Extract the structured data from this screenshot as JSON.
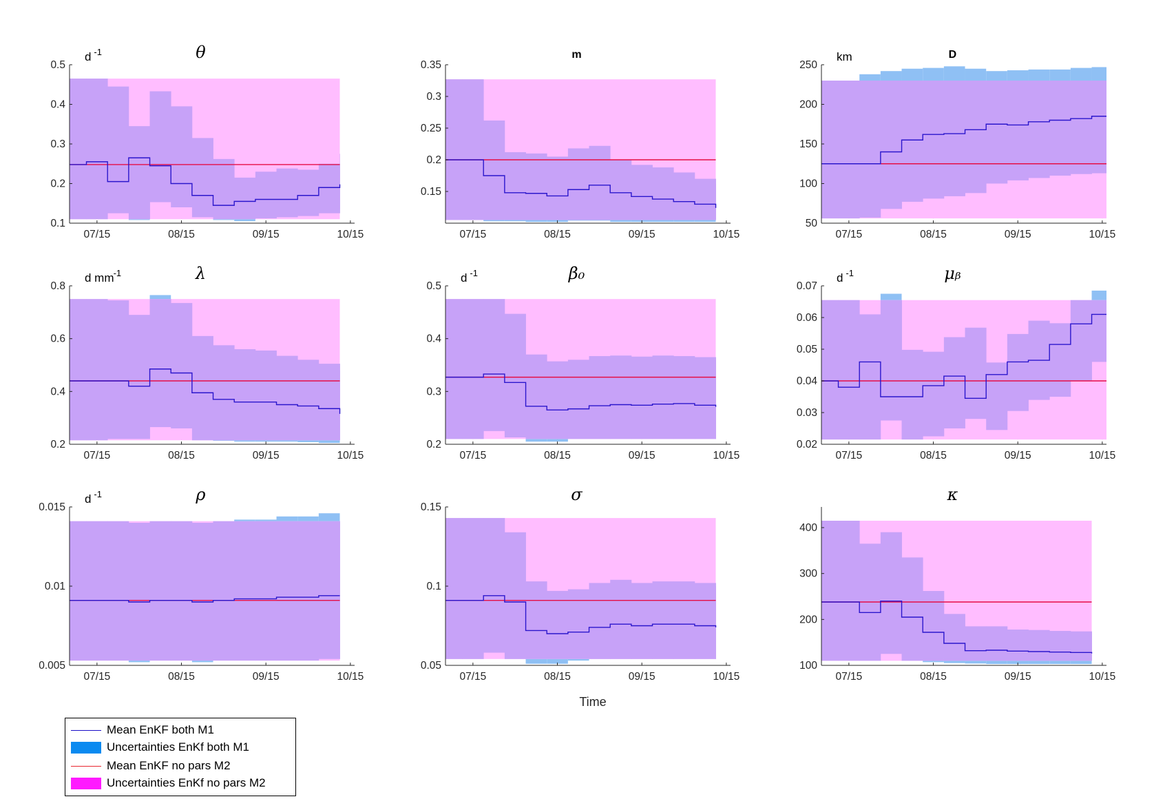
{
  "chart_data": [
    {
      "type": "area",
      "title": "θ",
      "title_style": "symbol",
      "unit": "d",
      "unit_exp": "-1",
      "ylim": [
        0.1,
        0.5
      ],
      "yticks": [
        0.1,
        0.2,
        0.3,
        0.4,
        0.5
      ],
      "ytick_labels": [
        "0.1",
        "0.2",
        "0.3",
        "0.4",
        "0.5"
      ],
      "x_end": 12.5,
      "m2_mean": 0.248,
      "m2_lower": 0.11,
      "m2_upper": 0.465,
      "m1_mean": [
        0.248,
        0.255,
        0.205,
        0.265,
        0.245,
        0.2,
        0.17,
        0.145,
        0.155,
        0.16,
        0.16,
        0.17,
        0.19,
        0.198
      ],
      "m1_upper": [
        0.465,
        0.465,
        0.445,
        0.345,
        0.433,
        0.395,
        0.315,
        0.262,
        0.215,
        0.23,
        0.238,
        0.235,
        0.25,
        0.275
      ],
      "m1_lower": [
        0.11,
        0.11,
        0.125,
        0.108,
        0.153,
        0.14,
        0.115,
        0.108,
        0.105,
        0.112,
        0.115,
        0.118,
        0.125,
        0.135
      ]
    },
    {
      "type": "area",
      "title": "m",
      "title_style": "text",
      "unit": "",
      "unit_exp": "",
      "ylim": [
        0.1,
        0.35
      ],
      "yticks": [
        0.15,
        0.2,
        0.25,
        0.3,
        0.35
      ],
      "ytick_labels": [
        "0.15",
        "0.2",
        "0.25",
        "0.3",
        "0.35"
      ],
      "x_end": 12.5,
      "m2_mean": 0.2,
      "m2_lower": 0.105,
      "m2_upper": 0.327,
      "m1_mean": [
        0.2,
        0.2,
        0.175,
        0.148,
        0.147,
        0.143,
        0.153,
        0.16,
        0.148,
        0.142,
        0.138,
        0.134,
        0.13,
        0.124
      ],
      "m1_upper": [
        0.327,
        0.327,
        0.262,
        0.212,
        0.21,
        0.205,
        0.218,
        0.222,
        0.2,
        0.192,
        0.188,
        0.18,
        0.17,
        0.162
      ],
      "m1_lower": [
        0.105,
        0.105,
        0.103,
        0.103,
        0.102,
        0.102,
        0.104,
        0.104,
        0.102,
        0.102,
        0.102,
        0.102,
        0.102,
        0.102
      ]
    },
    {
      "type": "area",
      "title": "D",
      "title_style": "text",
      "unit": "km",
      "unit_exp": "",
      "ylim": [
        50,
        250
      ],
      "yticks": [
        50,
        100,
        150,
        200,
        250
      ],
      "ytick_labels": [
        "50",
        "100",
        "150",
        "200",
        "250"
      ],
      "x_end": 13.5,
      "m2_mean": 125,
      "m2_lower": 56,
      "m2_upper": 230,
      "m1_mean": [
        125,
        125,
        125,
        140,
        155,
        162,
        163,
        168,
        175,
        174,
        178,
        180,
        182,
        185
      ],
      "m1_upper": [
        230,
        230,
        238,
        242,
        245,
        246,
        248,
        245,
        242,
        243,
        244,
        244,
        246,
        247
      ],
      "m1_lower": [
        56,
        56,
        57,
        68,
        77,
        81,
        84,
        88,
        100,
        104,
        107,
        110,
        112,
        113
      ]
    },
    {
      "type": "area",
      "title": "λ",
      "title_style": "symbol",
      "unit": "d mm",
      "unit_exp": "-1",
      "ylim": [
        0.2,
        0.8
      ],
      "yticks": [
        0.2,
        0.4,
        0.6,
        0.8
      ],
      "ytick_labels": [
        "0.2",
        "0.4",
        "0.6",
        "0.8"
      ],
      "x_end": 12.5,
      "m2_mean": 0.44,
      "m2_lower": 0.215,
      "m2_upper": 0.75,
      "m1_mean": [
        0.44,
        0.44,
        0.44,
        0.42,
        0.485,
        0.47,
        0.395,
        0.37,
        0.36,
        0.36,
        0.35,
        0.345,
        0.335,
        0.315
      ],
      "m1_upper": [
        0.75,
        0.75,
        0.745,
        0.69,
        0.765,
        0.735,
        0.61,
        0.575,
        0.56,
        0.555,
        0.535,
        0.52,
        0.505,
        0.48
      ],
      "m1_lower": [
        0.215,
        0.215,
        0.22,
        0.22,
        0.265,
        0.26,
        0.215,
        0.213,
        0.21,
        0.21,
        0.21,
        0.208,
        0.205,
        0.205
      ]
    },
    {
      "type": "area",
      "title": "β₀",
      "title_style": "symbol",
      "unit": "d",
      "unit_exp": "-1",
      "ylim": [
        0.2,
        0.5
      ],
      "yticks": [
        0.2,
        0.3,
        0.4,
        0.5
      ],
      "ytick_labels": [
        "0.2",
        "0.3",
        "0.4",
        "0.5"
      ],
      "x_end": 12.5,
      "m2_mean": 0.327,
      "m2_lower": 0.21,
      "m2_upper": 0.475,
      "m1_mean": [
        0.327,
        0.327,
        0.333,
        0.317,
        0.272,
        0.265,
        0.267,
        0.273,
        0.275,
        0.274,
        0.276,
        0.277,
        0.274,
        0.271
      ],
      "m1_upper": [
        0.475,
        0.475,
        0.475,
        0.447,
        0.37,
        0.357,
        0.36,
        0.367,
        0.368,
        0.366,
        0.368,
        0.367,
        0.365,
        0.36
      ],
      "m1_lower": [
        0.21,
        0.21,
        0.225,
        0.213,
        0.205,
        0.205,
        0.21,
        0.21,
        0.21,
        0.21,
        0.21,
        0.21,
        0.21,
        0.208
      ]
    },
    {
      "type": "area",
      "title": "μᵦ",
      "title_style": "symbol",
      "unit": "d",
      "unit_exp": "-1",
      "ylim": [
        0.02,
        0.07
      ],
      "yticks": [
        0.02,
        0.03,
        0.04,
        0.05,
        0.06,
        0.07
      ],
      "ytick_labels": [
        "0.02",
        "0.03",
        "0.04",
        "0.05",
        "0.06",
        "0.07"
      ],
      "x_end": 13.5,
      "m2_mean": 0.04,
      "m2_lower": 0.0215,
      "m2_upper": 0.0655,
      "m1_mean": [
        0.04,
        0.038,
        0.046,
        0.035,
        0.035,
        0.0385,
        0.0415,
        0.0345,
        0.042,
        0.046,
        0.0465,
        0.0515,
        0.058,
        0.061
      ],
      "m1_upper": [
        0.0655,
        0.0655,
        0.061,
        0.0675,
        0.0498,
        0.0492,
        0.0538,
        0.0568,
        0.0458,
        0.0548,
        0.059,
        0.0582,
        0.0655,
        0.0685
      ],
      "m1_lower": [
        0.0215,
        0.0215,
        0.0215,
        0.0275,
        0.0215,
        0.0225,
        0.025,
        0.028,
        0.0245,
        0.0305,
        0.034,
        0.035,
        0.04,
        0.046
      ]
    },
    {
      "type": "area",
      "title": "ρ",
      "title_style": "symbol",
      "unit": "d",
      "unit_exp": "-1",
      "ylim": [
        0.005,
        0.015
      ],
      "yticks": [
        0.005,
        0.01,
        0.015
      ],
      "ytick_labels": [
        "0.005",
        "0.01",
        "0.015"
      ],
      "x_end": 12.5,
      "m2_mean": 0.0091,
      "m2_lower": 0.0053,
      "m2_upper": 0.0141,
      "m1_mean": [
        0.0091,
        0.0091,
        0.0091,
        0.009,
        0.0091,
        0.0091,
        0.009,
        0.0091,
        0.0092,
        0.0092,
        0.0093,
        0.0093,
        0.0094,
        0.0094
      ],
      "m1_upper": [
        0.0141,
        0.0141,
        0.0141,
        0.014,
        0.0141,
        0.0141,
        0.014,
        0.0141,
        0.0142,
        0.0142,
        0.0144,
        0.0144,
        0.0146,
        0.0147
      ],
      "m1_lower": [
        0.0053,
        0.0053,
        0.0053,
        0.0052,
        0.0053,
        0.0053,
        0.0052,
        0.0053,
        0.0053,
        0.0053,
        0.0053,
        0.0053,
        0.0054,
        0.0054
      ]
    },
    {
      "type": "area",
      "title": "σ",
      "title_style": "symbol",
      "unit": "",
      "unit_exp": "",
      "ylim": [
        0.05,
        0.15
      ],
      "yticks": [
        0.05,
        0.1,
        0.15
      ],
      "ytick_labels": [
        "0.05",
        "0.1",
        "0.15"
      ],
      "x_end": 12.5,
      "m2_mean": 0.091,
      "m2_lower": 0.054,
      "m2_upper": 0.143,
      "m1_mean": [
        0.091,
        0.091,
        0.094,
        0.09,
        0.072,
        0.07,
        0.071,
        0.074,
        0.076,
        0.075,
        0.076,
        0.076,
        0.075,
        0.074
      ],
      "m1_upper": [
        0.143,
        0.143,
        0.143,
        0.134,
        0.103,
        0.097,
        0.098,
        0.102,
        0.104,
        0.102,
        0.103,
        0.103,
        0.102,
        0.1
      ],
      "m1_lower": [
        0.054,
        0.054,
        0.058,
        0.054,
        0.051,
        0.051,
        0.053,
        0.054,
        0.054,
        0.054,
        0.054,
        0.054,
        0.054,
        0.054
      ]
    },
    {
      "type": "area",
      "title": "κ",
      "title_style": "symbol",
      "unit": "",
      "unit_exp": "",
      "ylim": [
        100,
        445
      ],
      "yticks": [
        100,
        200,
        300,
        400
      ],
      "ytick_labels": [
        "100",
        "200",
        "300",
        "400"
      ],
      "x_end": 12.5,
      "m2_mean": 238,
      "m2_lower": 110,
      "m2_upper": 415,
      "m1_mean": [
        238,
        238,
        215,
        240,
        205,
        172,
        148,
        132,
        133,
        131,
        130,
        129,
        128,
        126
      ],
      "m1_upper": [
        415,
        415,
        365,
        390,
        335,
        262,
        212,
        185,
        185,
        178,
        177,
        175,
        174,
        172
      ],
      "m1_lower": [
        110,
        110,
        110,
        125,
        110,
        107,
        105,
        104,
        103,
        103,
        103,
        103,
        103,
        103
      ]
    }
  ],
  "x_ticks": [
    "07/15",
    "08/15",
    "09/15",
    "10/15"
  ],
  "x_tick_positions": [
    1,
    5,
    9,
    13
  ],
  "x_range": [
    -0.3,
    13.2
  ],
  "xlabel": "Time",
  "legend": {
    "items": [
      {
        "label": "Mean EnKF both M1",
        "kind": "line",
        "color": "#1a0dc8"
      },
      {
        "label": "Uncertainties EnKf both M1",
        "kind": "patch",
        "color": "#0a8af0"
      },
      {
        "label": "Mean EnKF no pars M2",
        "kind": "line",
        "color": "#e8262f"
      },
      {
        "label": "Uncertainties EnKf no pars M2",
        "kind": "patch",
        "color": "#ff1aff"
      }
    ]
  },
  "colors": {
    "m1_band": "#8fc0f4",
    "m2_band": "#ffbdff",
    "overlap": "#c7a2f8",
    "m1_line": "#2b16cc",
    "m2_line": "#e60d45",
    "axis": "#262626"
  }
}
